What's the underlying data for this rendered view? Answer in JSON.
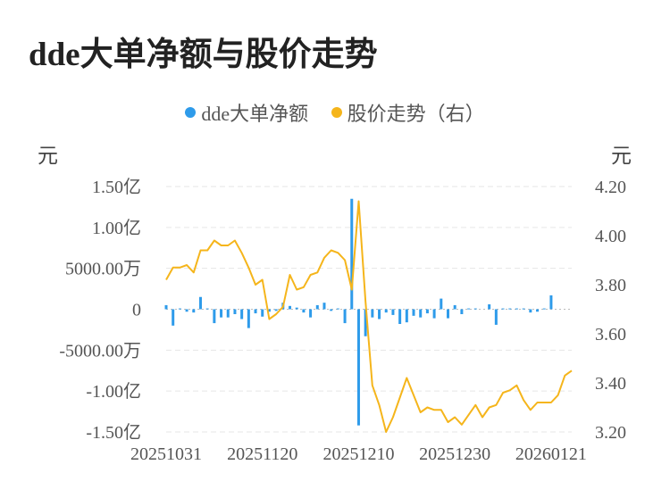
{
  "title": "dde大单净额与股价走势",
  "legend": [
    {
      "label": "dde大单净额",
      "color": "#2e9bea"
    },
    {
      "label": "股价走势（右）",
      "color": "#f5b51b"
    }
  ],
  "units": {
    "left": "元",
    "right": "元"
  },
  "chart_data": {
    "type": "bar+line",
    "left_axis": {
      "min": -15000,
      "max": 15000,
      "ticks": [
        15000,
        10000,
        5000,
        0,
        -5000,
        -10000,
        -15000
      ],
      "tick_labels": [
        "1.50亿",
        "1.00亿",
        "5000.00万",
        "0",
        "-5000.00万",
        "-1.00亿",
        "-1.50亿"
      ]
    },
    "right_axis": {
      "min": 3.2,
      "max": 4.2,
      "ticks": [
        4.2,
        4.0,
        3.8,
        3.6,
        3.4,
        3.2
      ],
      "tick_labels": [
        "4.20",
        "4.00",
        "3.80",
        "3.60",
        "3.40",
        "3.20"
      ]
    },
    "x_tick_labels": [
      {
        "index": 0,
        "label": "20251031"
      },
      {
        "index": 14,
        "label": "20251120"
      },
      {
        "index": 28,
        "label": "20251210"
      },
      {
        "index": 42,
        "label": "20251230"
      },
      {
        "index": 56,
        "label": "20260121"
      }
    ],
    "gridlines": true,
    "series": [
      {
        "name": "dde大单净额",
        "kind": "bar",
        "color": "#2e9bea",
        "values": [
          500,
          -2000,
          100,
          -300,
          -400,
          1500,
          100,
          -1700,
          -1000,
          -1000,
          -600,
          -1200,
          -2300,
          -500,
          -900,
          -300,
          -200,
          800,
          400,
          200,
          -400,
          -1000,
          500,
          800,
          -200,
          100,
          -1700,
          13500,
          -14200,
          -3300,
          -1000,
          -1200,
          -400,
          -700,
          -1800,
          -1600,
          -800,
          -1000,
          -500,
          -1100,
          1300,
          -1100,
          500,
          -600,
          100,
          100,
          0,
          600,
          -1900,
          100,
          100,
          100,
          100,
          -400,
          -300,
          100,
          1700,
          0,
          0,
          0
        ],
        "unit": "万元"
      },
      {
        "name": "股价走势（右）",
        "kind": "line",
        "color": "#f5b51b",
        "values": [
          3.82,
          3.87,
          3.87,
          3.88,
          3.85,
          3.94,
          3.94,
          3.98,
          3.96,
          3.96,
          3.98,
          3.93,
          3.87,
          3.8,
          3.82,
          3.66,
          3.68,
          3.71,
          3.84,
          3.78,
          3.79,
          3.84,
          3.85,
          3.91,
          3.94,
          3.93,
          3.9,
          3.78,
          4.14,
          3.73,
          3.39,
          3.31,
          3.2,
          3.26,
          3.34,
          3.42,
          3.35,
          3.28,
          3.3,
          3.29,
          3.29,
          3.24,
          3.26,
          3.23,
          3.27,
          3.31,
          3.26,
          3.3,
          3.31,
          3.36,
          3.37,
          3.39,
          3.33,
          3.29,
          3.32,
          3.32,
          3.32,
          3.35,
          3.43,
          3.45
        ]
      }
    ]
  }
}
